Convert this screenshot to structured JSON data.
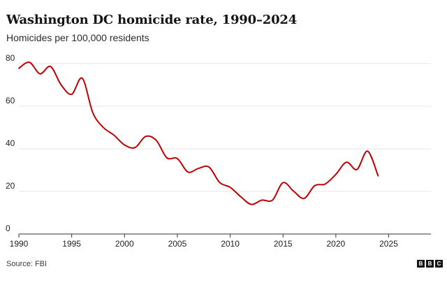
{
  "header": {
    "title": "Washington DC homicide rate, 1990–2024",
    "subtitle": "Homicides per 100,000 residents"
  },
  "footer": {
    "source": "Source: FBI",
    "logo_letters": [
      "B",
      "B",
      "C"
    ]
  },
  "colors": {
    "line": "#c00000",
    "grid": "#e6e6e6",
    "axis": "#333333"
  },
  "chart_data": {
    "type": "line",
    "title": "Washington DC homicide rate, 1990–2024",
    "subtitle": "Homicides per 100,000 residents",
    "xlim": [
      1990,
      2029
    ],
    "ylim": [
      0,
      80
    ],
    "x_ticks": [
      1990,
      1995,
      2000,
      2005,
      2010,
      2015,
      2020,
      2025
    ],
    "y_ticks": [
      0,
      20,
      40,
      60,
      80
    ],
    "grid": true,
    "x": [
      1990,
      1991,
      1992,
      1993,
      1994,
      1995,
      1996,
      1997,
      1998,
      1999,
      2000,
      2001,
      2002,
      2003,
      2004,
      2005,
      2006,
      2007,
      2008,
      2009,
      2010,
      2011,
      2012,
      2013,
      2014,
      2015,
      2016,
      2017,
      2018,
      2019,
      2020,
      2021,
      2022,
      2023,
      2024
    ],
    "series": [
      {
        "values": [
          77.8,
          80.6,
          75.2,
          78.6,
          70.0,
          65.6,
          73.1,
          56.9,
          50.0,
          46.4,
          41.8,
          40.6,
          45.8,
          44.0,
          35.8,
          35.4,
          29.1,
          30.8,
          31.4,
          24.2,
          21.9,
          17.5,
          13.9,
          15.9,
          15.9,
          24.1,
          20.1,
          16.7,
          22.7,
          23.5,
          28.0,
          33.7,
          30.3,
          38.9,
          27.3
        ]
      }
    ]
  }
}
